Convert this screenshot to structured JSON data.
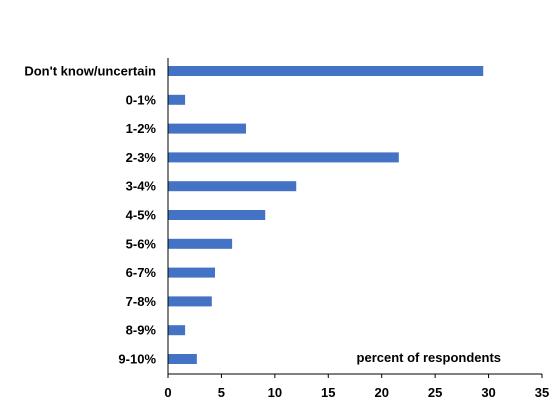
{
  "chart_data": {
    "type": "bar",
    "orientation": "horizontal",
    "categories": [
      "Don't know/uncertain",
      "0-1%",
      "1-2%",
      "2-3%",
      "3-4%",
      "4-5%",
      "5-6%",
      "6-7%",
      "7-8%",
      "8-9%",
      "9-10%"
    ],
    "values": [
      29.5,
      1.6,
      7.3,
      21.6,
      12.0,
      9.1,
      6.0,
      4.4,
      4.1,
      1.6,
      2.7
    ],
    "title": "",
    "xlabel": "",
    "ylabel": "",
    "xlim": [
      0,
      35
    ],
    "xticks": [
      "0",
      "5",
      "10",
      "15",
      "20",
      "25",
      "30",
      "35"
    ],
    "annotation": "percent of respondents",
    "grid": false,
    "bar_color": "#4472C4"
  }
}
